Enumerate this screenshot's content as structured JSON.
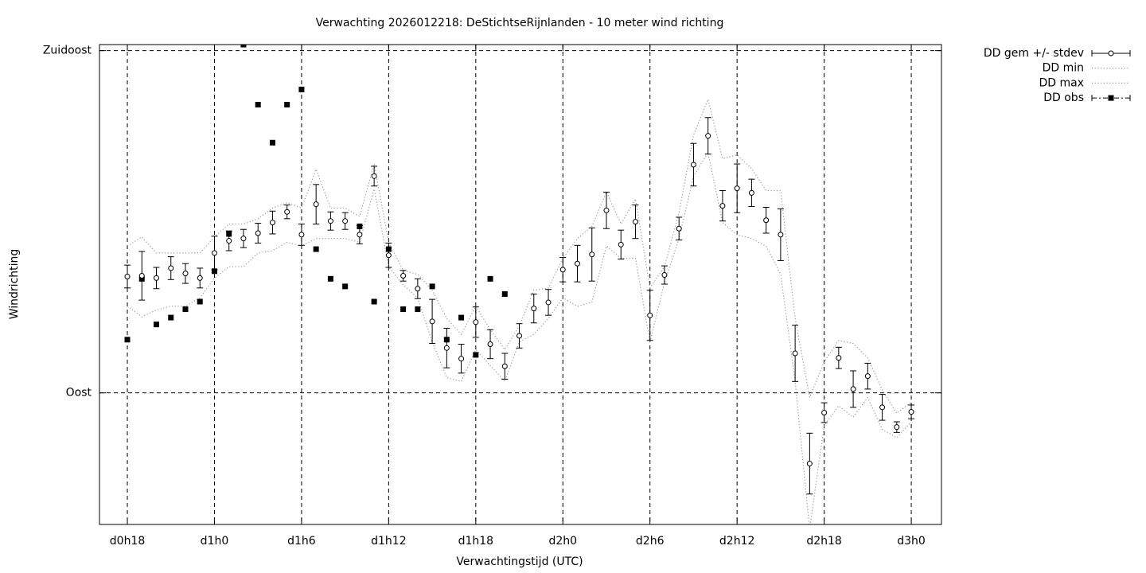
{
  "chart_data": {
    "type": "errorbar",
    "title": "Verwachting 2026012218: DeStichtseRijnlanden - 10 meter wind richting",
    "xlabel": "Verwachtingstijd (UTC)",
    "ylabel": "Windrichting",
    "xlim": [
      16.08,
      74.08
    ],
    "ylim": [
      72.7,
      135.8
    ],
    "xticks": [
      {
        "value": 18,
        "label": "d0h18"
      },
      {
        "value": 24,
        "label": "d1h0"
      },
      {
        "value": 30,
        "label": "d1h6"
      },
      {
        "value": 36,
        "label": "d1h12"
      },
      {
        "value": 42,
        "label": "d1h18"
      },
      {
        "value": 48,
        "label": "d2h0"
      },
      {
        "value": 54,
        "label": "d2h6"
      },
      {
        "value": 60,
        "label": "d2h12"
      },
      {
        "value": 66,
        "label": "d2h18"
      },
      {
        "value": 72,
        "label": "d3h0"
      }
    ],
    "yticks": [
      {
        "value": 90,
        "label": "Oost"
      },
      {
        "value": 135,
        "label": "Zuidoost"
      }
    ],
    "grid": true,
    "legend": "outside-top-right",
    "x": [
      18,
      19,
      20,
      21,
      22,
      23,
      24,
      25,
      26,
      27,
      28,
      29,
      30,
      31,
      32,
      33,
      34,
      35,
      36,
      37,
      38,
      39,
      40,
      41,
      42,
      43,
      44,
      45,
      46,
      47,
      48,
      49,
      50,
      51,
      52,
      53,
      54,
      55,
      56,
      57,
      58,
      59,
      60,
      61,
      62,
      63,
      64,
      65,
      66,
      67,
      68,
      69,
      70,
      71,
      72
    ],
    "series": [
      {
        "name": "DD gem +/- stdev",
        "color": "#000000",
        "style": "errorbar",
        "values": [
          105.3,
          105.4,
          105.1,
          106.4,
          105.7,
          105.1,
          108.4,
          110.0,
          110.3,
          111.0,
          112.4,
          113.8,
          110.8,
          114.8,
          112.6,
          112.6,
          110.8,
          118.5,
          108.1,
          105.4,
          103.7,
          99.4,
          95.9,
          94.5,
          99.3,
          96.4,
          93.5,
          97.5,
          101.1,
          101.9,
          106.2,
          107.0,
          108.2,
          114.0,
          109.5,
          112.5,
          100.2,
          105.5,
          111.6,
          120.0,
          123.8,
          114.6,
          116.9,
          116.3,
          112.7,
          110.8,
          95.2,
          80.7,
          87.4,
          94.6,
          90.5,
          92.2,
          88.1,
          85.5,
          87.5
        ],
        "stdev": [
          1.5,
          3.2,
          1.4,
          1.5,
          1.3,
          1.3,
          2.2,
          1.3,
          1.2,
          1.3,
          1.5,
          0.9,
          1.4,
          2.6,
          1.2,
          1.1,
          1.2,
          1.3,
          1.6,
          0.7,
          1.3,
          2.9,
          2.6,
          1.9,
          2.0,
          1.9,
          1.7,
          1.6,
          1.9,
          1.7,
          1.6,
          2.4,
          3.5,
          2.4,
          1.9,
          2.2,
          3.3,
          1.2,
          1.5,
          2.8,
          2.4,
          2.0,
          3.2,
          1.8,
          1.7,
          3.4,
          3.7,
          4.0,
          1.3,
          1.4,
          2.4,
          1.7,
          1.7,
          0.7,
          0.9
        ]
      },
      {
        "name": "DD min",
        "color": "#999999",
        "style": "dotted",
        "values": [
          101.4,
          100.0,
          100.9,
          101.4,
          101.4,
          102.5,
          105.1,
          106.6,
          106.6,
          108.4,
          108.7,
          109.8,
          109.3,
          110.3,
          110.3,
          110.3,
          109.8,
          116.8,
          106.6,
          104.2,
          102.5,
          96.7,
          92.0,
          91.5,
          95.7,
          93.6,
          91.5,
          96.7,
          97.7,
          99.8,
          102.5,
          101.4,
          101.9,
          109.3,
          107.7,
          107.7,
          96.7,
          104.5,
          110.3,
          118.5,
          121.6,
          112.4,
          110.8,
          110.3,
          109.3,
          105.6,
          91.5,
          72.1,
          85.7,
          88.3,
          86.8,
          89.4,
          85.2,
          84.1,
          86.2
        ]
      },
      {
        "name": "DD max",
        "color": "#999999",
        "style": "dotted",
        "values": [
          109.3,
          110.5,
          108.4,
          108.4,
          108.4,
          108.4,
          110.5,
          112.2,
          112.2,
          112.9,
          114.3,
          115.0,
          114.3,
          119.4,
          114.3,
          114.3,
          113.2,
          120.1,
          109.8,
          106.1,
          105.6,
          103.5,
          99.8,
          97.7,
          101.4,
          98.3,
          95.7,
          98.8,
          103.5,
          103.8,
          107.7,
          110.3,
          111.9,
          116.4,
          112.2,
          115.5,
          103.8,
          106.6,
          113.7,
          123.9,
          128.6,
          120.8,
          121.3,
          119.5,
          116.6,
          116.6,
          99.8,
          89.4,
          94.1,
          96.9,
          96.5,
          94.6,
          90.4,
          87.3,
          88.8
        ]
      },
      {
        "name": "DD obs",
        "color": "#000000",
        "style": "squares",
        "values": [
          97.0,
          105.0,
          99.0,
          99.9,
          101.0,
          102.0,
          106.0,
          110.9,
          135.8,
          127.9,
          122.9,
          127.9,
          129.9,
          108.9,
          105.0,
          104.0,
          111.9,
          102.0,
          108.9,
          101.0,
          101.0,
          104.0,
          97.0,
          99.9,
          95.0,
          105.0,
          103.0,
          null,
          null,
          null,
          null,
          null,
          null,
          null,
          null,
          null,
          null,
          null,
          null,
          null,
          null,
          null,
          null,
          null,
          null,
          null,
          null,
          null,
          null,
          null,
          null,
          null,
          null,
          null,
          null
        ]
      }
    ]
  }
}
